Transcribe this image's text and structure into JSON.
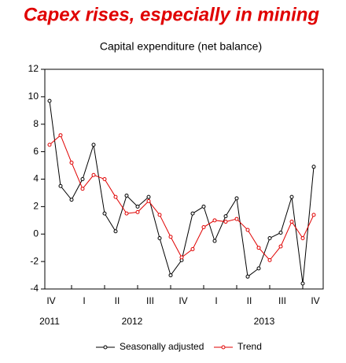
{
  "chart_data": {
    "type": "line",
    "title": "Capex rises, especially in mining",
    "subtitle": "Capital expenditure (net balance)",
    "categories": [
      "IV",
      null,
      null,
      "I",
      null,
      null,
      "II",
      null,
      null,
      "III",
      null,
      null,
      "IV",
      null,
      null,
      "I",
      null,
      null,
      "II",
      null,
      null,
      "III",
      null,
      null,
      "IV"
    ],
    "years": [
      "2011",
      "2012",
      "2013"
    ],
    "series": [
      {
        "name": "Seasonally adjusted",
        "color": "#000000",
        "values": [
          9.7,
          3.5,
          2.5,
          4.0,
          6.5,
          1.5,
          0.2,
          2.8,
          2.0,
          2.7,
          -0.3,
          -3.0,
          -1.9,
          1.5,
          2.0,
          -0.5,
          1.3,
          2.6,
          -3.1,
          -2.5,
          -0.3,
          0.1,
          2.7,
          -3.6,
          4.9
        ]
      },
      {
        "name": "Trend",
        "color": "#e00000",
        "values": [
          6.5,
          7.2,
          5.2,
          3.3,
          4.3,
          4.0,
          2.7,
          1.5,
          1.6,
          2.4,
          1.4,
          -0.2,
          -1.7,
          -1.1,
          0.5,
          1.0,
          0.9,
          1.1,
          0.3,
          -1.0,
          -1.9,
          -0.9,
          0.9,
          -0.3,
          1.4
        ]
      }
    ],
    "ylim": [
      -4,
      12
    ],
    "yticks": [
      -4,
      -2,
      0,
      2,
      4,
      6,
      8,
      10,
      12
    ],
    "legend": "bottom"
  }
}
